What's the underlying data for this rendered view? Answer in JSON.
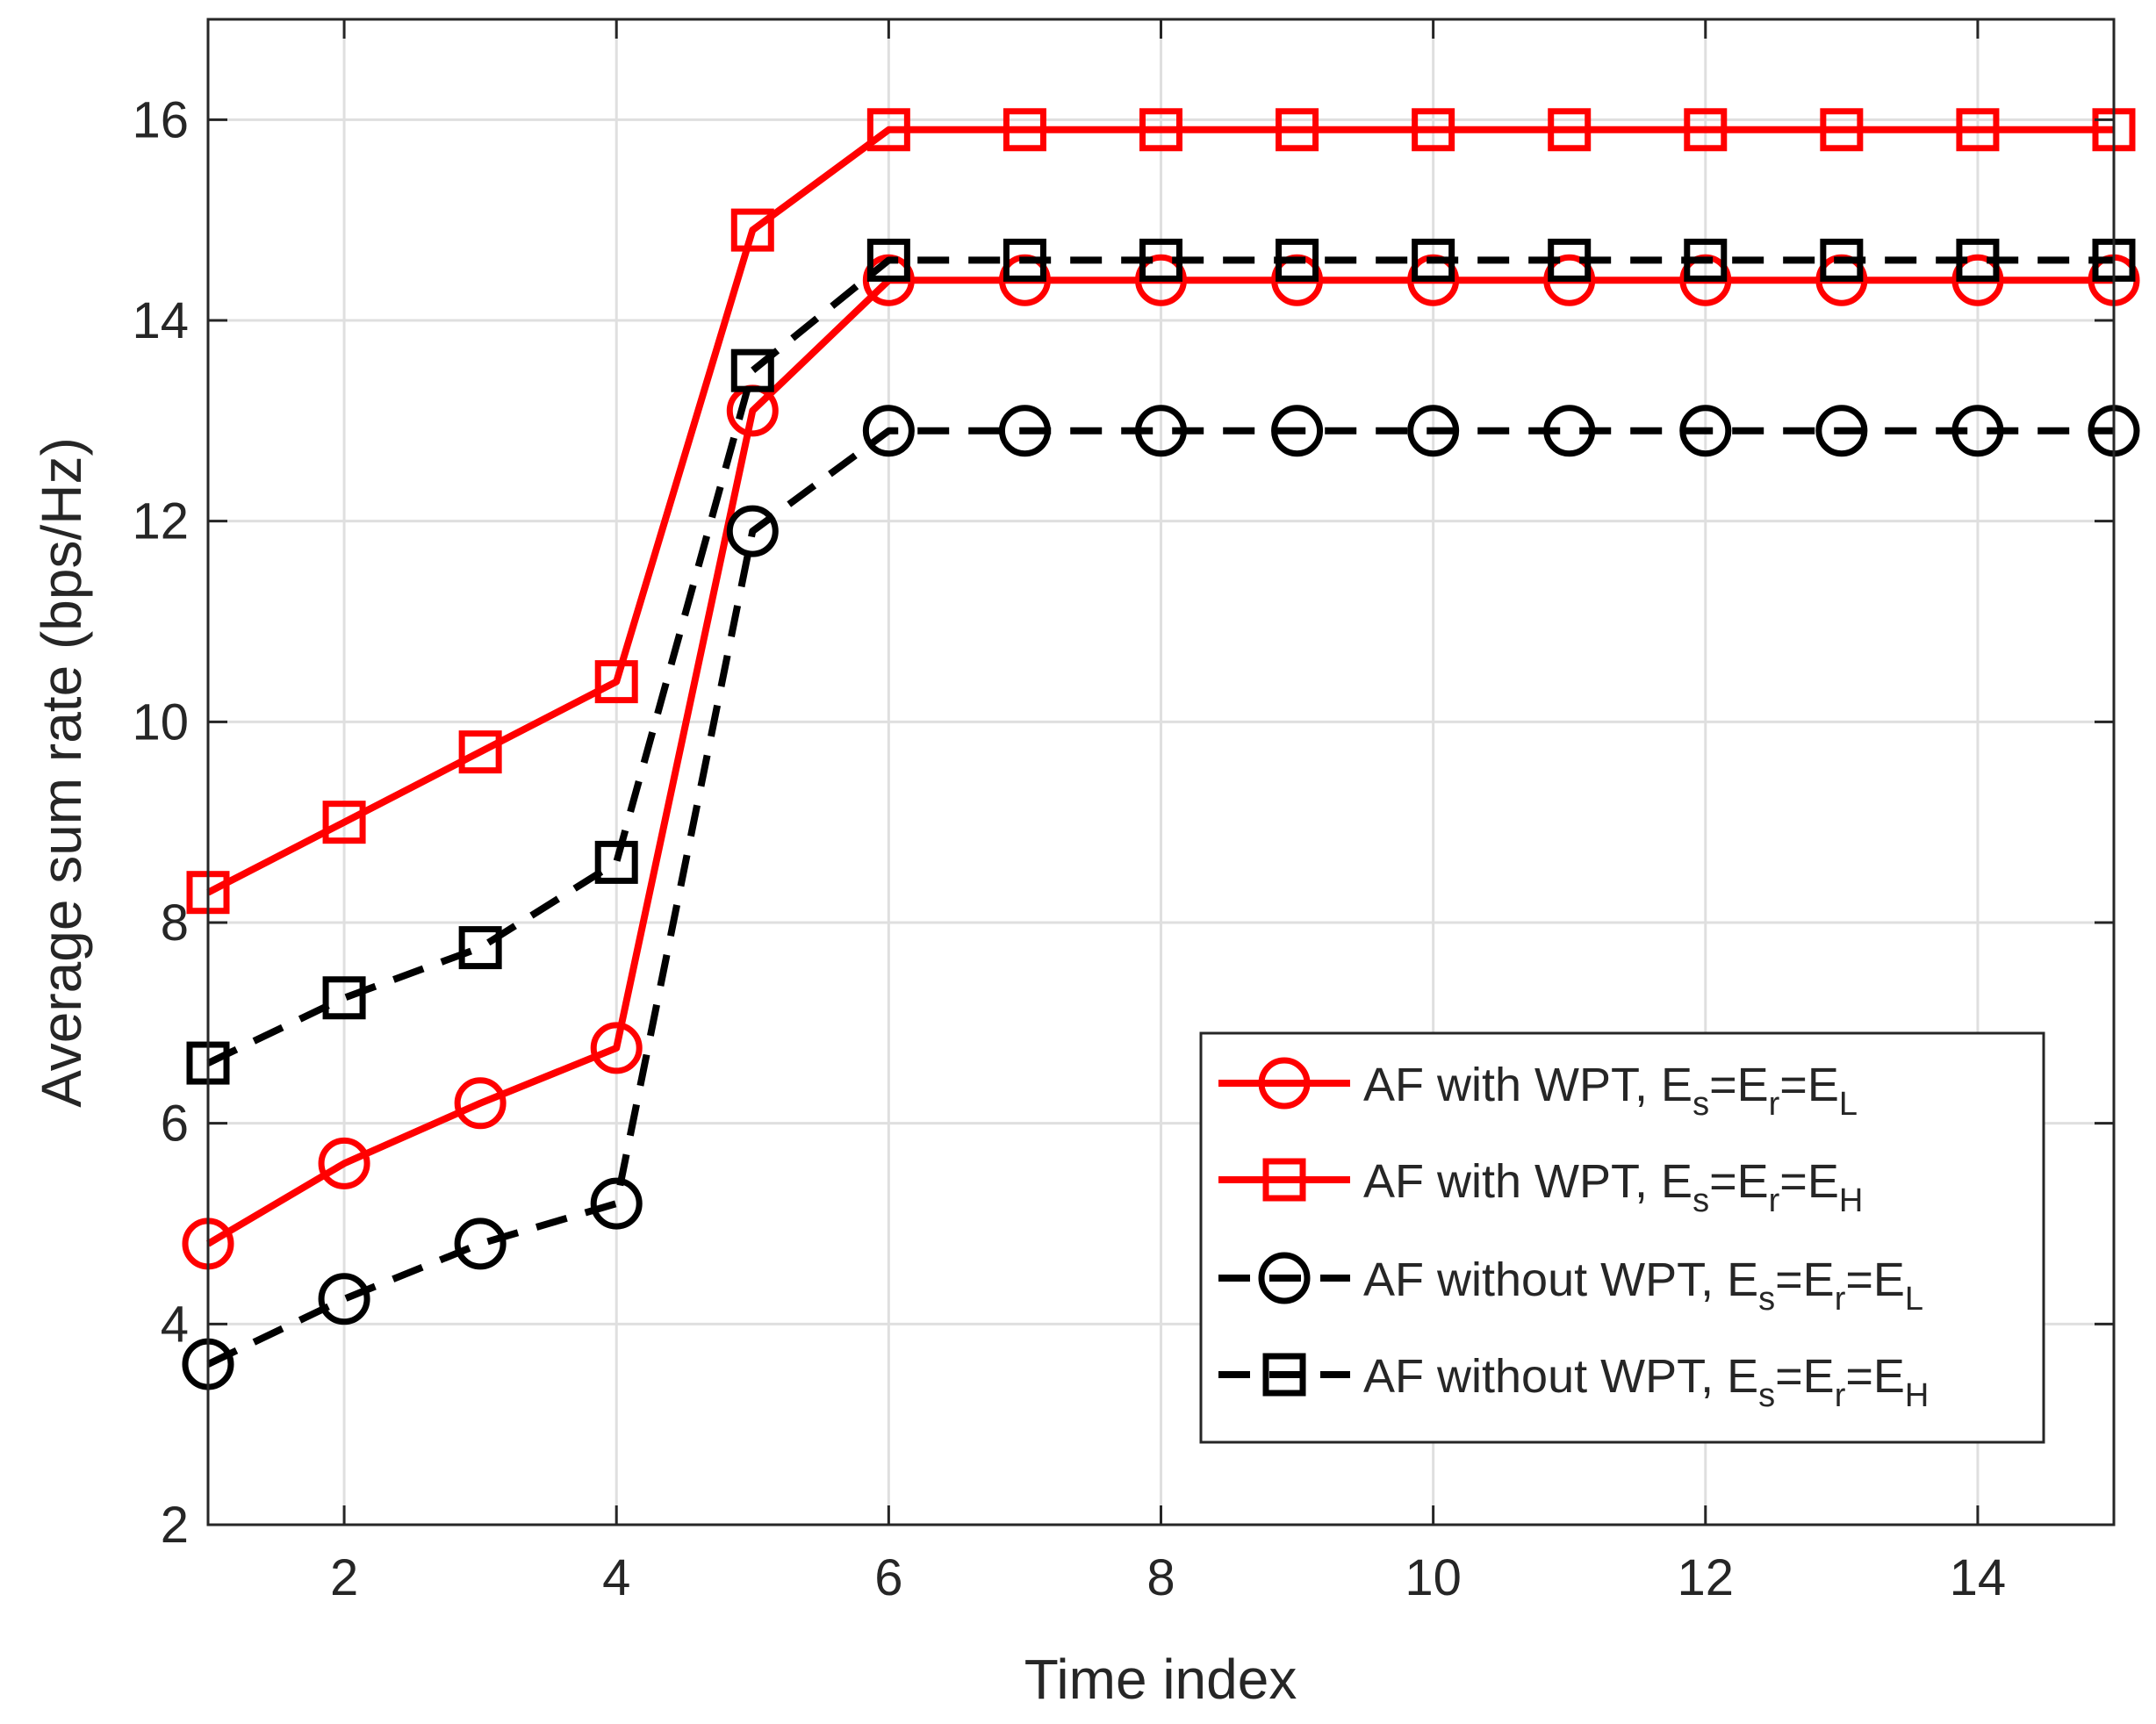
{
  "chart_data": {
    "type": "line",
    "title": "",
    "xlabel": "Time index",
    "ylabel": "Average sum rate (bps/Hz)",
    "xlim": [
      1,
      15
    ],
    "ylim": [
      2,
      17
    ],
    "xticks": [
      2,
      4,
      6,
      8,
      10,
      12,
      14
    ],
    "yticks": [
      2,
      4,
      6,
      8,
      10,
      12,
      14,
      16
    ],
    "grid": true,
    "legend_position": "bottom-right",
    "x": [
      1,
      2,
      3,
      4,
      5,
      6,
      7,
      8,
      9,
      10,
      11,
      12,
      13,
      14,
      15
    ],
    "series": [
      {
        "name": "AF with WPT, Es=Er=EL",
        "legend": {
          "prefix": "AF with WPT, ",
          "sub1": "s",
          "sub2": "r",
          "sub3": "L"
        },
        "color": "#ff0000",
        "line": "solid",
        "marker": "circle",
        "values": [
          4.8,
          5.6,
          6.2,
          6.75,
          13.1,
          14.4,
          14.4,
          14.4,
          14.4,
          14.4,
          14.4,
          14.4,
          14.4,
          14.4,
          14.4
        ]
      },
      {
        "name": "AF with WPT, Es=Er=EH",
        "legend": {
          "prefix": "AF with WPT, ",
          "sub1": "s",
          "sub2": "r",
          "sub3": "H"
        },
        "color": "#ff0000",
        "line": "solid",
        "marker": "square",
        "values": [
          8.3,
          9.0,
          9.7,
          10.4,
          14.9,
          15.9,
          15.9,
          15.9,
          15.9,
          15.9,
          15.9,
          15.9,
          15.9,
          15.9,
          15.9
        ]
      },
      {
        "name": "AF without WPT, Es=Er=EL",
        "legend": {
          "prefix": "AF without WPT, ",
          "sub1": "s",
          "sub2": "r",
          "sub3": "L"
        },
        "color": "#000000",
        "line": "dashed",
        "marker": "circle",
        "values": [
          3.6,
          4.25,
          4.8,
          5.2,
          11.9,
          12.9,
          12.9,
          12.9,
          12.9,
          12.9,
          12.9,
          12.9,
          12.9,
          12.9,
          12.9
        ]
      },
      {
        "name": "AF without WPT, Es=Er=EH",
        "legend": {
          "prefix": "AF without WPT, ",
          "sub1": "s",
          "sub2": "r",
          "sub3": "H"
        },
        "color": "#000000",
        "line": "dashed",
        "marker": "square",
        "values": [
          6.6,
          7.25,
          7.75,
          8.6,
          13.5,
          14.6,
          14.6,
          14.6,
          14.6,
          14.6,
          14.6,
          14.6,
          14.6,
          14.6,
          14.6
        ]
      }
    ]
  }
}
